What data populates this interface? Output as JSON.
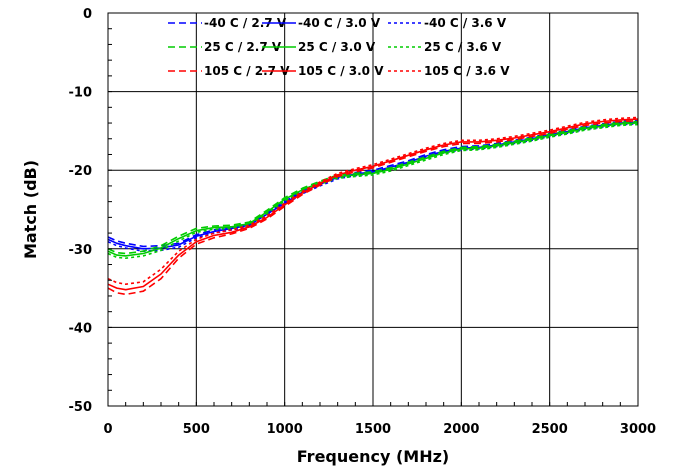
{
  "chart_data": {
    "type": "line",
    "xlabel": "Frequency (MHz)",
    "ylabel": "Match (dB)",
    "xlim": [
      0,
      3000
    ],
    "ylim": [
      -50,
      0
    ],
    "xticks": [
      "0",
      "500",
      "1000",
      "1500",
      "2000",
      "2500",
      "3000"
    ],
    "yticks": [
      "0",
      "-10",
      "-20",
      "-30",
      "-40",
      "-50"
    ],
    "grid": true,
    "legend_position": "top",
    "series": [
      {
        "name": "-40 C / 2.7 V",
        "color": "#0000ff",
        "dash": "dashed",
        "x": [
          0,
          50,
          100,
          200,
          300,
          400,
          500,
          600,
          700,
          800,
          900,
          1000,
          1100,
          1200,
          1300,
          1400,
          1500,
          1600,
          1700,
          1800,
          1900,
          2000,
          2100,
          2200,
          2300,
          2400,
          2500,
          2600,
          2700,
          2800,
          2900,
          3000
        ],
        "y": [
          -28.5,
          -29.0,
          -29.3,
          -29.7,
          -29.6,
          -29.3,
          -28.2,
          -27.6,
          -27.2,
          -26.8,
          -25.4,
          -24.0,
          -22.6,
          -21.6,
          -20.7,
          -20.3,
          -20.0,
          -19.4,
          -18.8,
          -18.0,
          -17.4,
          -17.0,
          -16.9,
          -16.6,
          -16.2,
          -15.8,
          -15.3,
          -14.9,
          -14.4,
          -14.1,
          -13.8,
          -13.7
        ]
      },
      {
        "name": "-40 C / 3.0 V",
        "color": "#0000ff",
        "dash": "solid",
        "x": [
          0,
          50,
          100,
          200,
          300,
          400,
          500,
          600,
          700,
          800,
          900,
          1000,
          1100,
          1200,
          1300,
          1400,
          1500,
          1600,
          1700,
          1800,
          1900,
          2000,
          2100,
          2200,
          2300,
          2400,
          2500,
          2600,
          2700,
          2800,
          2900,
          3000
        ],
        "y": [
          -28.8,
          -29.3,
          -29.6,
          -30.0,
          -29.9,
          -29.5,
          -28.4,
          -27.8,
          -27.4,
          -27.0,
          -25.6,
          -24.2,
          -22.8,
          -21.8,
          -20.9,
          -20.5,
          -20.2,
          -19.6,
          -19.0,
          -18.2,
          -17.6,
          -17.2,
          -17.1,
          -16.8,
          -16.4,
          -16.0,
          -15.5,
          -15.1,
          -14.6,
          -14.3,
          -14.0,
          -13.9
        ]
      },
      {
        "name": "-40 C / 3.6 V",
        "color": "#0000ff",
        "dash": "dotted",
        "x": [
          0,
          50,
          100,
          200,
          300,
          400,
          500,
          600,
          700,
          800,
          900,
          1000,
          1100,
          1200,
          1300,
          1400,
          1500,
          1600,
          1700,
          1800,
          1900,
          2000,
          2100,
          2200,
          2300,
          2400,
          2500,
          2600,
          2700,
          2800,
          2900,
          3000
        ],
        "y": [
          -29.1,
          -29.6,
          -29.9,
          -30.3,
          -30.2,
          -29.8,
          -28.6,
          -28.0,
          -27.6,
          -27.2,
          -25.8,
          -24.4,
          -23.0,
          -22.0,
          -21.1,
          -20.7,
          -20.4,
          -19.8,
          -19.2,
          -18.4,
          -17.8,
          -17.4,
          -17.3,
          -17.0,
          -16.6,
          -16.2,
          -15.7,
          -15.3,
          -14.8,
          -14.5,
          -14.2,
          -14.1
        ]
      },
      {
        "name": "25 C / 2.7 V",
        "color": "#00cc00",
        "dash": "dashed",
        "x": [
          0,
          50,
          100,
          200,
          300,
          400,
          500,
          600,
          700,
          800,
          900,
          1000,
          1100,
          1200,
          1300,
          1400,
          1500,
          1600,
          1700,
          1800,
          1900,
          2000,
          2100,
          2200,
          2300,
          2400,
          2500,
          2600,
          2700,
          2800,
          2900,
          3000
        ],
        "y": [
          -30.0,
          -30.5,
          -30.6,
          -30.3,
          -29.6,
          -28.4,
          -27.4,
          -27.1,
          -27.0,
          -26.6,
          -25.1,
          -23.5,
          -22.3,
          -21.4,
          -20.6,
          -20.4,
          -20.2,
          -19.7,
          -19.0,
          -18.3,
          -17.6,
          -17.1,
          -17.0,
          -16.7,
          -16.3,
          -15.9,
          -15.4,
          -15.0,
          -14.5,
          -14.2,
          -13.9,
          -13.8
        ]
      },
      {
        "name": "25 C / 3.0 V",
        "color": "#00cc00",
        "dash": "solid",
        "x": [
          0,
          50,
          100,
          200,
          300,
          400,
          500,
          600,
          700,
          800,
          900,
          1000,
          1100,
          1200,
          1300,
          1400,
          1500,
          1600,
          1700,
          1800,
          1900,
          2000,
          2100,
          2200,
          2300,
          2400,
          2500,
          2600,
          2700,
          2800,
          2900,
          3000
        ],
        "y": [
          -30.3,
          -30.8,
          -30.9,
          -30.6,
          -29.9,
          -28.7,
          -27.7,
          -27.3,
          -27.2,
          -26.8,
          -25.3,
          -23.7,
          -22.5,
          -21.6,
          -20.8,
          -20.6,
          -20.4,
          -19.9,
          -19.2,
          -18.5,
          -17.8,
          -17.3,
          -17.2,
          -16.9,
          -16.5,
          -16.1,
          -15.6,
          -15.2,
          -14.7,
          -14.4,
          -14.1,
          -14.0
        ]
      },
      {
        "name": "25 C / 3.6 V",
        "color": "#00cc00",
        "dash": "dotted",
        "x": [
          0,
          50,
          100,
          200,
          300,
          400,
          500,
          600,
          700,
          800,
          900,
          1000,
          1100,
          1200,
          1300,
          1400,
          1500,
          1600,
          1700,
          1800,
          1900,
          2000,
          2100,
          2200,
          2300,
          2400,
          2500,
          2600,
          2700,
          2800,
          2900,
          3000
        ],
        "y": [
          -30.6,
          -31.1,
          -31.2,
          -30.9,
          -30.2,
          -29.0,
          -27.9,
          -27.5,
          -27.4,
          -27.0,
          -25.5,
          -23.9,
          -22.7,
          -21.8,
          -21.0,
          -20.8,
          -20.6,
          -20.1,
          -19.4,
          -18.7,
          -18.0,
          -17.5,
          -17.4,
          -17.1,
          -16.7,
          -16.3,
          -15.8,
          -15.4,
          -14.9,
          -14.6,
          -14.3,
          -14.2
        ]
      },
      {
        "name": "105 C / 2.7 V",
        "color": "#ff0000",
        "dash": "dashed",
        "x": [
          0,
          50,
          100,
          200,
          300,
          400,
          500,
          600,
          700,
          800,
          900,
          1000,
          1100,
          1200,
          1300,
          1400,
          1500,
          1600,
          1700,
          1800,
          1900,
          2000,
          2100,
          2200,
          2300,
          2400,
          2500,
          2600,
          2700,
          2800,
          2900,
          3000
        ],
        "y": [
          -35.0,
          -35.6,
          -35.8,
          -35.4,
          -33.8,
          -31.2,
          -29.4,
          -28.6,
          -28.1,
          -27.4,
          -26.2,
          -24.6,
          -23.1,
          -21.9,
          -20.8,
          -20.2,
          -19.7,
          -19.0,
          -18.3,
          -17.6,
          -17.0,
          -16.6,
          -16.6,
          -16.4,
          -16.1,
          -15.7,
          -15.3,
          -14.8,
          -14.3,
          -14.0,
          -13.8,
          -13.7
        ]
      },
      {
        "name": "105 C / 3.0 V",
        "color": "#ff0000",
        "dash": "solid",
        "x": [
          0,
          50,
          100,
          200,
          300,
          400,
          500,
          600,
          700,
          800,
          900,
          1000,
          1100,
          1200,
          1300,
          1400,
          1500,
          1600,
          1700,
          1800,
          1900,
          2000,
          2100,
          2200,
          2300,
          2400,
          2500,
          2600,
          2700,
          2800,
          2900,
          3000
        ],
        "y": [
          -34.5,
          -35.0,
          -35.2,
          -34.8,
          -33.2,
          -30.8,
          -29.1,
          -28.3,
          -27.9,
          -27.2,
          -26.0,
          -24.4,
          -22.9,
          -21.7,
          -20.6,
          -20.0,
          -19.5,
          -18.8,
          -18.1,
          -17.4,
          -16.8,
          -16.4,
          -16.4,
          -16.2,
          -15.9,
          -15.5,
          -15.1,
          -14.6,
          -14.1,
          -13.8,
          -13.6,
          -13.5
        ]
      },
      {
        "name": "105 C / 3.6 V",
        "color": "#ff0000",
        "dash": "dotted",
        "x": [
          0,
          50,
          100,
          200,
          300,
          400,
          500,
          600,
          700,
          800,
          900,
          1000,
          1100,
          1200,
          1300,
          1400,
          1500,
          1600,
          1700,
          1800,
          1900,
          2000,
          2100,
          2200,
          2300,
          2400,
          2500,
          2600,
          2700,
          2800,
          2900,
          3000
        ],
        "y": [
          -33.8,
          -34.3,
          -34.5,
          -34.2,
          -32.6,
          -30.3,
          -28.8,
          -28.0,
          -27.6,
          -27.0,
          -25.8,
          -24.2,
          -22.7,
          -21.5,
          -20.4,
          -19.8,
          -19.3,
          -18.6,
          -17.9,
          -17.2,
          -16.6,
          -16.2,
          -16.2,
          -16.0,
          -15.7,
          -15.3,
          -14.9,
          -14.4,
          -13.9,
          -13.6,
          -13.4,
          -13.3
        ]
      }
    ]
  }
}
